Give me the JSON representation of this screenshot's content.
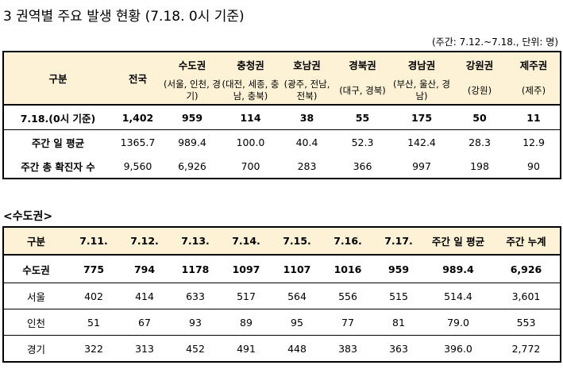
{
  "title": "3 권역별 주요 발생 현황 (7.18. 0시 기준)",
  "unit": "(주간: 7.12.~7.18., 단위: 명)",
  "table1": {
    "corner": "구분",
    "national": "전국",
    "regions": [
      {
        "name": "수도권",
        "sub": "(서울, 인천, 경기)"
      },
      {
        "name": "충청권",
        "sub": "(대전, 세종, 충남, 충북)"
      },
      {
        "name": "호남권",
        "sub": "(광주, 전남, 전북)"
      },
      {
        "name": "경북권",
        "sub": "(대구, 경북)"
      },
      {
        "name": "경남권",
        "sub": "(부산, 울산, 경남)"
      },
      {
        "name": "강원권",
        "sub": "(강원)"
      },
      {
        "name": "제주권",
        "sub": "(제주)"
      }
    ],
    "rows": [
      {
        "label": "7.18.(0시 기준)",
        "values": [
          "1,402",
          "959",
          "114",
          "38",
          "55",
          "175",
          "50",
          "11"
        ]
      },
      {
        "label": "주간 일 평균",
        "values": [
          "1365.7",
          "989.4",
          "100.0",
          "40.4",
          "52.3",
          "142.4",
          "28.3",
          "12.9"
        ]
      },
      {
        "label": "주간 총 확진자 수",
        "values": [
          "9,560",
          "6,926",
          "700",
          "283",
          "366",
          "997",
          "198",
          "90"
        ]
      }
    ]
  },
  "subhead": "<수도권>",
  "table2": {
    "headers": [
      "구분",
      "7.11.",
      "7.12.",
      "7.13.",
      "7.14.",
      "7.15.",
      "7.16.",
      "7.17.",
      "주간 일 평균",
      "주간 누계"
    ],
    "rows": [
      {
        "label": "수도권",
        "values": [
          "775",
          "794",
          "1178",
          "1097",
          "1107",
          "1016",
          "959",
          "989.4",
          "6,926"
        ]
      },
      {
        "label": "서울",
        "values": [
          "402",
          "414",
          "633",
          "517",
          "564",
          "556",
          "515",
          "514.4",
          "3,601"
        ]
      },
      {
        "label": "인천",
        "values": [
          "51",
          "67",
          "93",
          "89",
          "95",
          "77",
          "81",
          "79.0",
          "553"
        ]
      },
      {
        "label": "경기",
        "values": [
          "322",
          "313",
          "452",
          "491",
          "448",
          "383",
          "363",
          "396.0",
          "2,772"
        ]
      }
    ]
  }
}
